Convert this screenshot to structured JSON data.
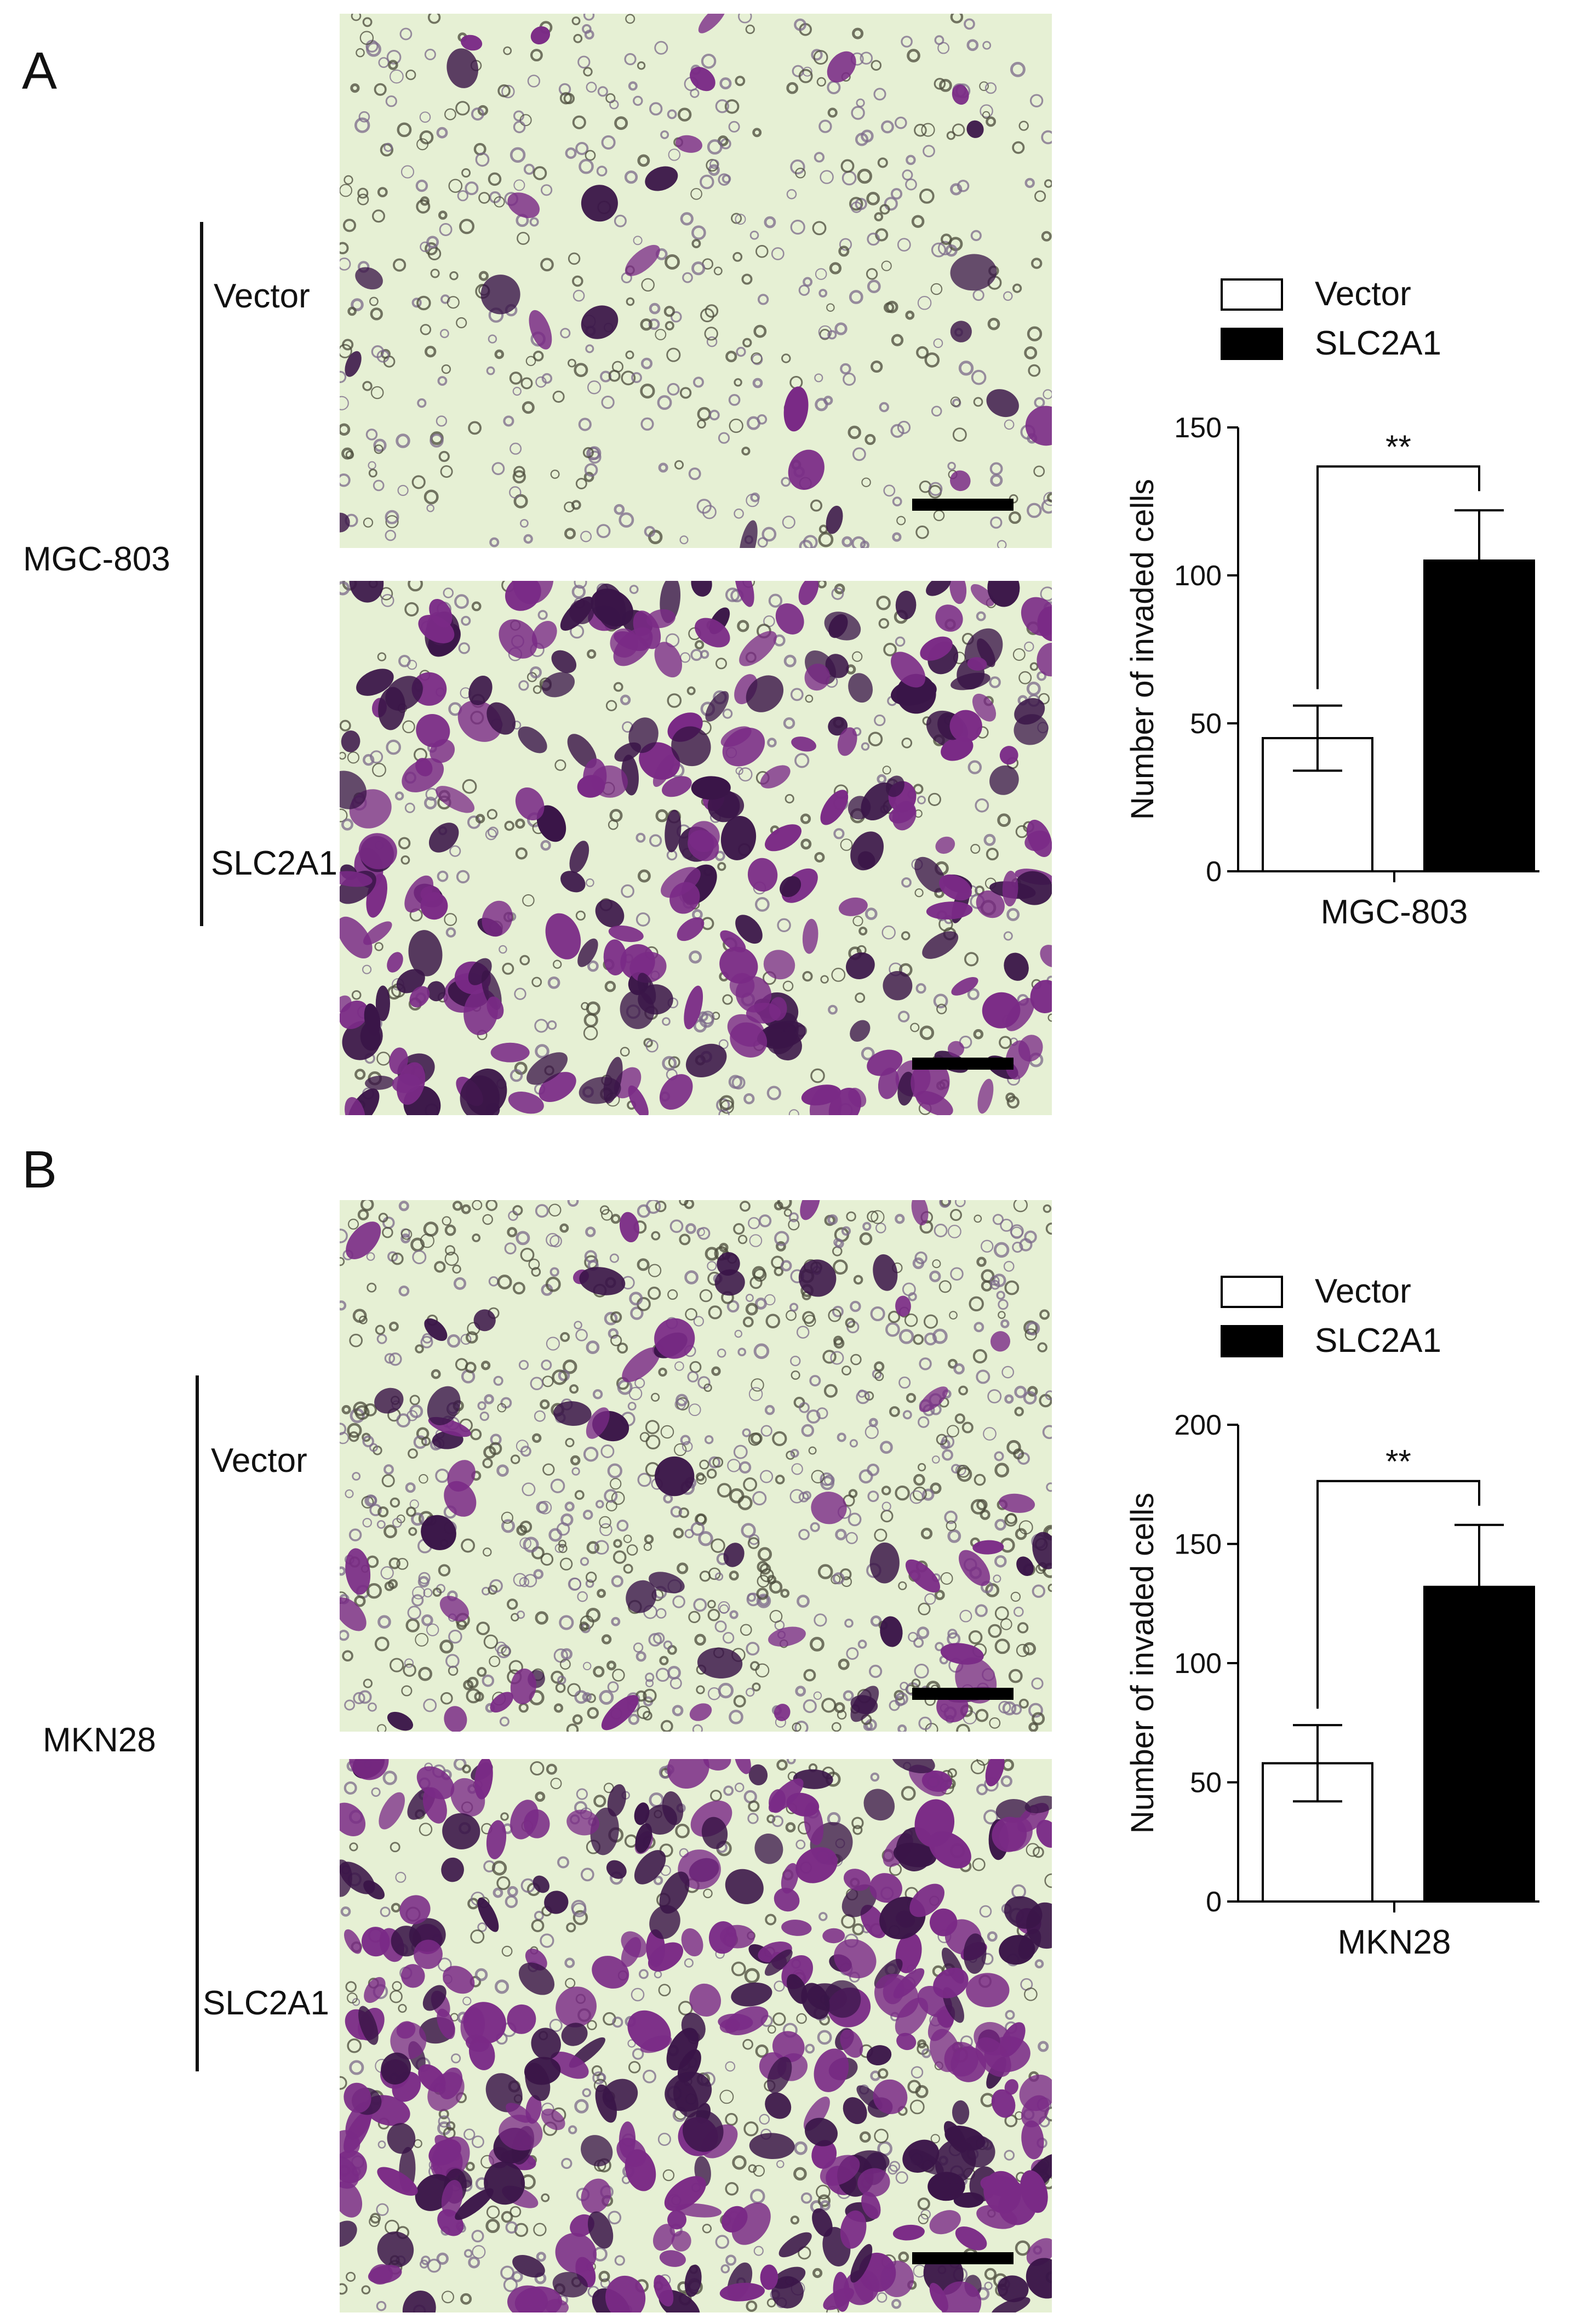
{
  "panels": [
    {
      "letter": "A",
      "cell_line": "MGC-803",
      "rows": [
        "Vector",
        "SLC2A1"
      ]
    },
    {
      "letter": "B",
      "cell_line": "MKN28",
      "rows": [
        "Vector",
        "SLC2A1"
      ]
    }
  ],
  "colors": {
    "stain_purple": "#7a2a86",
    "dark_purple": "#3a1548",
    "background_light": "#e6f0d4",
    "vector_bar": "#ffffff",
    "slc2a1_bar": "#000000"
  },
  "chart_data": [
    {
      "type": "bar",
      "categories": [
        "MGC-803"
      ],
      "series": [
        {
          "name": "Vector",
          "values": [
            45
          ],
          "error": [
            11
          ]
        },
        {
          "name": "SLC2A1",
          "values": [
            105
          ],
          "error": [
            17
          ]
        }
      ],
      "ylabel": "Number of  invaded cells",
      "xlabel": "MGC-803",
      "ylim": [
        0,
        150
      ],
      "yticks": [
        0,
        50,
        100,
        150
      ],
      "significance": "**",
      "legend": "top-right"
    },
    {
      "type": "bar",
      "categories": [
        "MKN28"
      ],
      "series": [
        {
          "name": "Vector",
          "values": [
            58
          ],
          "error": [
            16
          ]
        },
        {
          "name": "SLC2A1",
          "values": [
            132
          ],
          "error": [
            26
          ]
        }
      ],
      "ylabel": "Number of  invaded cells",
      "xlabel": "MKN28",
      "ylim": [
        0,
        200
      ],
      "yticks": [
        0,
        50,
        100,
        150,
        200
      ],
      "significance": "**",
      "legend": "top-right"
    }
  ]
}
